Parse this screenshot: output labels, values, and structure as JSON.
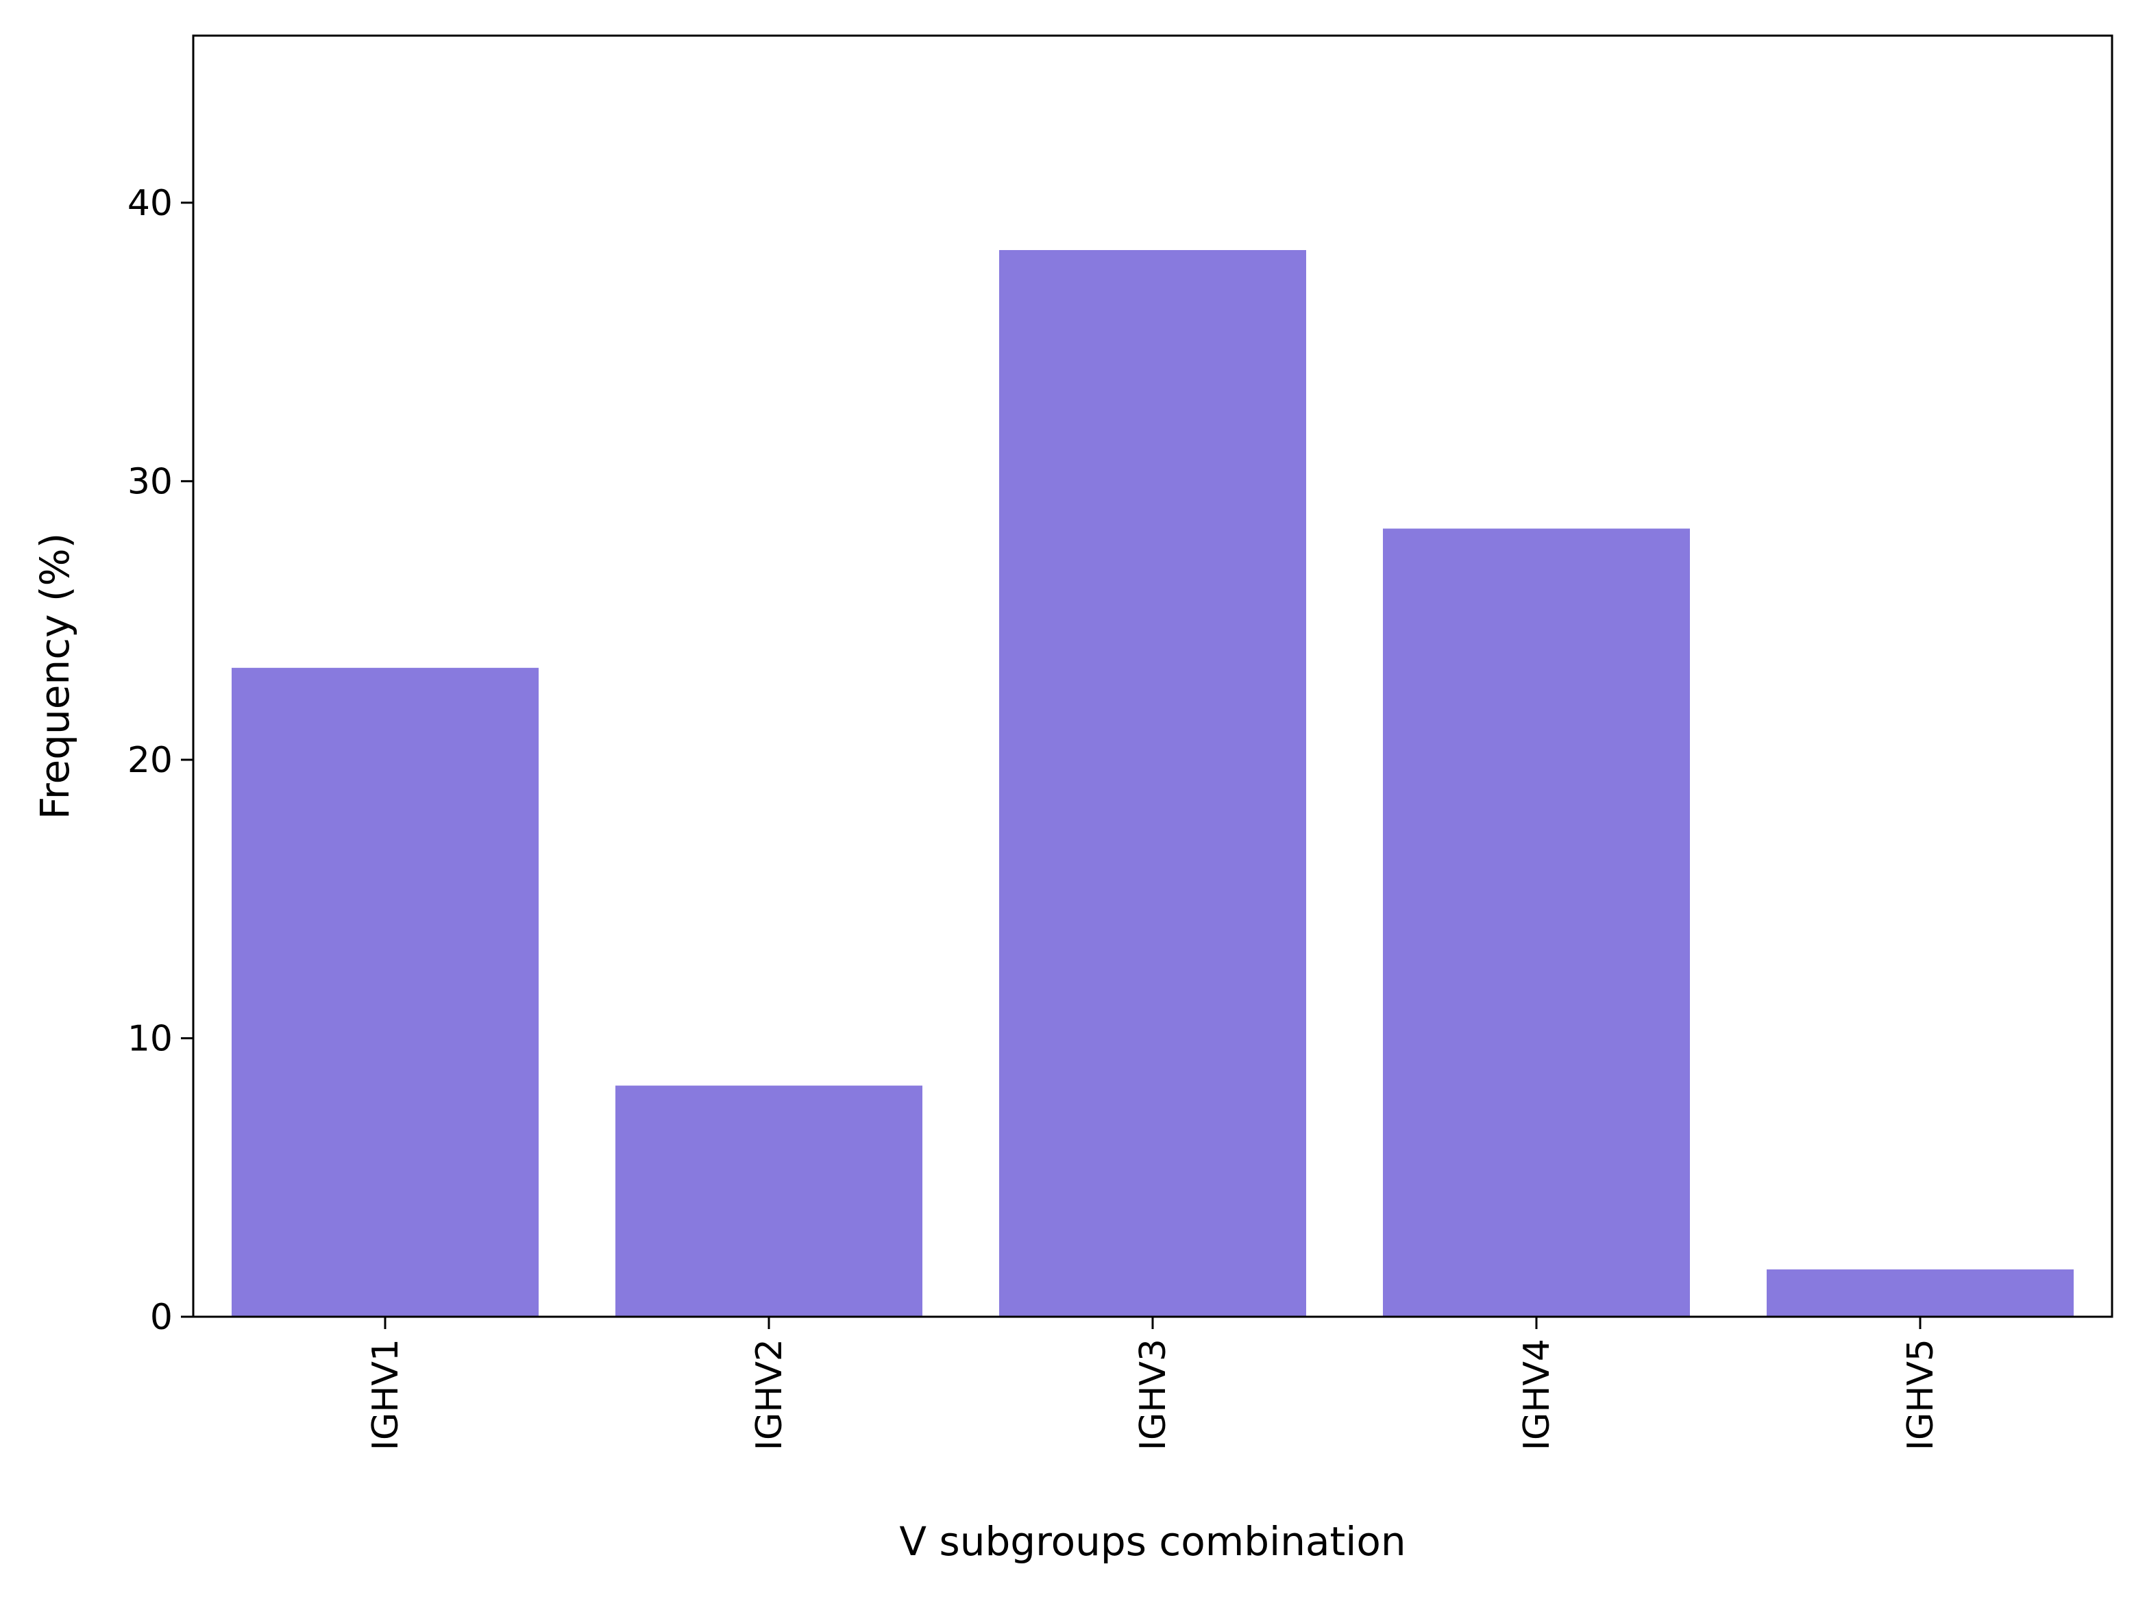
{
  "chart_data": {
    "type": "bar",
    "categories": [
      "IGHV1",
      "IGHV2",
      "IGHV3",
      "IGHV4",
      "IGHV5"
    ],
    "values": [
      23.3,
      8.3,
      38.3,
      28.3,
      1.7
    ],
    "xlabel": "V subgroups combination",
    "ylabel": "Frequency (%)",
    "ylim": [
      0,
      46
    ],
    "yticks": [
      0,
      10,
      20,
      30,
      40
    ],
    "bar_color": "#887ade",
    "grid": false,
    "x_tick_rotation": "vertical"
  }
}
